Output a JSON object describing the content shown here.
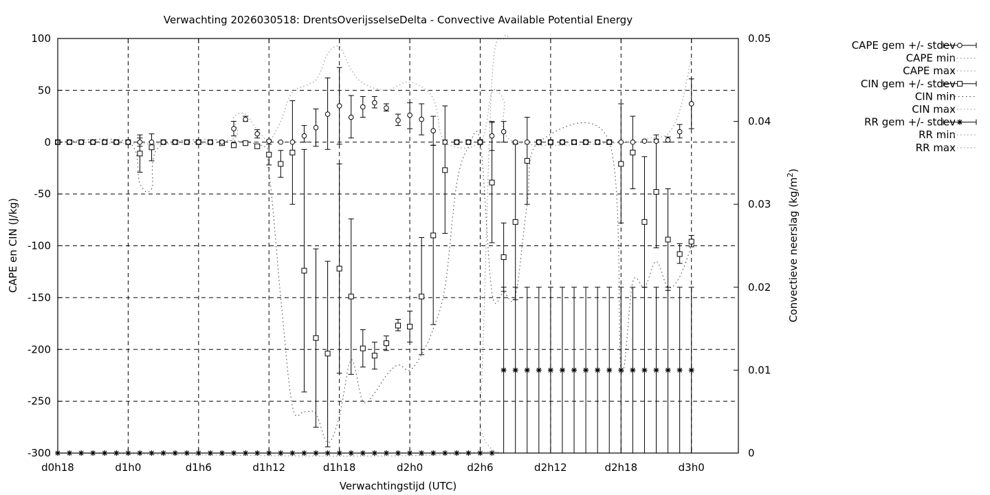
{
  "chart_data": {
    "type": "line",
    "title": "Verwachting 2026030518: DrentsOverijsselseDelta - Convective Available Potential Energy",
    "xlabel": "Verwachtingstijd (UTC)",
    "ylabel": "CAPE en CIN (J/kg)",
    "y2label": "Convectieve neerslag (kg/m",
    "y2label_sup": "2",
    "y2label_end": ")",
    "xlim": [
      18,
      76
    ],
    "ylim": [
      -300,
      100
    ],
    "y2lim": [
      0,
      0.05
    ],
    "grid": true,
    "legend_position": "outside-right",
    "x_ticks": [
      {
        "x": 18,
        "label": "d0h18"
      },
      {
        "x": 24,
        "label": "d1h0"
      },
      {
        "x": 30,
        "label": "d1h6"
      },
      {
        "x": 36,
        "label": "d1h12"
      },
      {
        "x": 42,
        "label": "d1h18"
      },
      {
        "x": 48,
        "label": "d2h0"
      },
      {
        "x": 54,
        "label": "d2h6"
      },
      {
        "x": 60,
        "label": "d2h12"
      },
      {
        "x": 66,
        "label": "d2h18"
      },
      {
        "x": 72,
        "label": "d3h0"
      }
    ],
    "y_ticks": [
      {
        "y": 100,
        "label": "100"
      },
      {
        "y": 50,
        "label": "50"
      },
      {
        "y": 0,
        "label": "0"
      },
      {
        "y": -50,
        "label": "-50"
      },
      {
        "y": -100,
        "label": "-100"
      },
      {
        "y": -150,
        "label": "-150"
      },
      {
        "y": -200,
        "label": "-200"
      },
      {
        "y": -250,
        "label": "-250"
      },
      {
        "y": -300,
        "label": "-300"
      }
    ],
    "y2_ticks": [
      {
        "y": 0.05,
        "label": "0.05"
      },
      {
        "y": 0.04,
        "label": "0.04"
      },
      {
        "y": 0.03,
        "label": "0.03"
      },
      {
        "y": 0.02,
        "label": "0.02"
      },
      {
        "y": 0.01,
        "label": "0.01"
      },
      {
        "y": 0,
        "label": "0"
      }
    ],
    "legend": [
      {
        "label": "CAPE gem +/- stdev",
        "marker": "circle",
        "style": "errorbar"
      },
      {
        "label": "CAPE min",
        "style": "dotted"
      },
      {
        "label": "CAPE max",
        "style": "dotted"
      },
      {
        "label": "CIN gem +/- stdev",
        "marker": "square",
        "style": "errorbar"
      },
      {
        "label": "CIN min",
        "style": "dotted-dark"
      },
      {
        "label": "CIN max",
        "style": "dotted"
      },
      {
        "label": "RR gem +/- stdev",
        "marker": "star",
        "style": "errorbar"
      },
      {
        "label": "RR min",
        "style": "dotted"
      },
      {
        "label": "RR max",
        "style": "dotted"
      }
    ],
    "cape_mean": [
      {
        "x": 18,
        "y": 0
      },
      {
        "x": 19,
        "y": 0
      },
      {
        "x": 20,
        "y": 0
      },
      {
        "x": 21,
        "y": 0
      },
      {
        "x": 22,
        "y": 0
      },
      {
        "x": 23,
        "y": 0
      },
      {
        "x": 24,
        "y": 0
      },
      {
        "x": 25,
        "y": 0,
        "lo": -4,
        "hi": 4
      },
      {
        "x": 26,
        "y": 0
      },
      {
        "x": 27,
        "y": 0
      },
      {
        "x": 28,
        "y": 0
      },
      {
        "x": 29,
        "y": 0
      },
      {
        "x": 30,
        "y": 0
      },
      {
        "x": 31,
        "y": 0
      },
      {
        "x": 32,
        "y": 0
      },
      {
        "x": 33,
        "y": 13,
        "lo": 6,
        "hi": 20
      },
      {
        "x": 34,
        "y": 22,
        "lo": 20,
        "hi": 25
      },
      {
        "x": 35,
        "y": 8,
        "lo": 4,
        "hi": 12
      },
      {
        "x": 36,
        "y": 1,
        "lo": 0,
        "hi": 2
      },
      {
        "x": 37,
        "y": 0
      },
      {
        "x": 38,
        "y": 0
      },
      {
        "x": 39,
        "y": 6,
        "lo": 0,
        "hi": 16
      },
      {
        "x": 40,
        "y": 14,
        "lo": -4,
        "hi": 32
      },
      {
        "x": 41,
        "y": 27,
        "lo": -7,
        "hi": 62
      },
      {
        "x": 42,
        "y": 35,
        "lo": -2,
        "hi": 72
      },
      {
        "x": 43,
        "y": 24,
        "lo": 4,
        "hi": 45
      },
      {
        "x": 44,
        "y": 34,
        "lo": 24,
        "hi": 44
      },
      {
        "x": 45,
        "y": 38,
        "lo": 33,
        "hi": 44
      },
      {
        "x": 46,
        "y": 33,
        "lo": 30,
        "hi": 37
      },
      {
        "x": 47,
        "y": 21,
        "lo": 16,
        "hi": 27
      },
      {
        "x": 48,
        "y": 26,
        "lo": 13,
        "hi": 38
      },
      {
        "x": 49,
        "y": 22,
        "lo": 7,
        "hi": 37
      },
      {
        "x": 50,
        "y": 11,
        "lo": -3,
        "hi": 25
      },
      {
        "x": 51,
        "y": 0,
        "lo": -2,
        "hi": 2
      },
      {
        "x": 52,
        "y": 0
      },
      {
        "x": 53,
        "y": 0
      },
      {
        "x": 54,
        "y": 0
      },
      {
        "x": 55,
        "y": 6,
        "lo": -8,
        "hi": 20
      },
      {
        "x": 56,
        "y": 10,
        "lo": 0,
        "hi": 20
      },
      {
        "x": 57,
        "y": 0,
        "lo": -1,
        "hi": 1
      },
      {
        "x": 58,
        "y": 0
      },
      {
        "x": 59,
        "y": 0
      },
      {
        "x": 60,
        "y": 0
      },
      {
        "x": 61,
        "y": 0
      },
      {
        "x": 62,
        "y": 0
      },
      {
        "x": 63,
        "y": 0
      },
      {
        "x": 64,
        "y": 0
      },
      {
        "x": 65,
        "y": 0
      },
      {
        "x": 66,
        "y": 0
      },
      {
        "x": 67,
        "y": 0
      },
      {
        "x": 68,
        "y": 1,
        "lo": 0,
        "hi": 2
      },
      {
        "x": 69,
        "y": 1,
        "lo": 0,
        "hi": 3
      },
      {
        "x": 70,
        "y": 2,
        "lo": 0,
        "hi": 5
      },
      {
        "x": 71,
        "y": 10,
        "lo": 4,
        "hi": 17
      },
      {
        "x": 72,
        "y": 37,
        "lo": 13,
        "hi": 61
      }
    ],
    "cin_mean": [
      {
        "x": 18,
        "y": 0
      },
      {
        "x": 19,
        "y": 0
      },
      {
        "x": 20,
        "y": 0
      },
      {
        "x": 21,
        "y": 0
      },
      {
        "x": 22,
        "y": 0
      },
      {
        "x": 23,
        "y": 0
      },
      {
        "x": 24,
        "y": 0
      },
      {
        "x": 25,
        "y": -11,
        "lo": -29,
        "hi": 7
      },
      {
        "x": 26,
        "y": -5,
        "lo": -18,
        "hi": 8
      },
      {
        "x": 27,
        "y": 0
      },
      {
        "x": 28,
        "y": 0
      },
      {
        "x": 29,
        "y": 0
      },
      {
        "x": 30,
        "y": 0
      },
      {
        "x": 31,
        "y": 0
      },
      {
        "x": 32,
        "y": -1,
        "lo": -3,
        "hi": 1
      },
      {
        "x": 33,
        "y": -3,
        "lo": -5,
        "hi": -1
      },
      {
        "x": 34,
        "y": -1,
        "lo": -2,
        "hi": 0
      },
      {
        "x": 35,
        "y": -4,
        "lo": -6,
        "hi": -2
      },
      {
        "x": 36,
        "y": -12,
        "lo": -22,
        "hi": -2
      },
      {
        "x": 37,
        "y": -21,
        "lo": -34,
        "hi": -8
      },
      {
        "x": 38,
        "y": -10,
        "lo": -60,
        "hi": 40
      },
      {
        "x": 39,
        "y": -124,
        "lo": -241,
        "hi": -7
      },
      {
        "x": 40,
        "y": -189,
        "lo": -275,
        "hi": -103
      },
      {
        "x": 41,
        "y": -204,
        "lo": -294,
        "hi": -115
      },
      {
        "x": 42,
        "y": -122,
        "lo": -223,
        "hi": -21
      },
      {
        "x": 43,
        "y": -149,
        "lo": -224,
        "hi": -74
      },
      {
        "x": 44,
        "y": -199,
        "lo": -217,
        "hi": -181
      },
      {
        "x": 45,
        "y": -206,
        "lo": -219,
        "hi": -193
      },
      {
        "x": 46,
        "y": -194,
        "lo": -201,
        "hi": -187
      },
      {
        "x": 47,
        "y": -177,
        "lo": -182,
        "hi": -171
      },
      {
        "x": 48,
        "y": -178,
        "lo": -193,
        "hi": -163
      },
      {
        "x": 49,
        "y": -149,
        "lo": -205,
        "hi": -92
      },
      {
        "x": 50,
        "y": -90,
        "lo": -176,
        "hi": -3
      },
      {
        "x": 51,
        "y": -27,
        "lo": -88,
        "hi": 35
      },
      {
        "x": 52,
        "y": 0
      },
      {
        "x": 53,
        "y": 0
      },
      {
        "x": 54,
        "y": 0
      },
      {
        "x": 55,
        "y": -39,
        "lo": -97,
        "hi": 19
      },
      {
        "x": 56,
        "y": -111,
        "lo": -144,
        "hi": -78
      },
      {
        "x": 57,
        "y": -77,
        "lo": -152,
        "hi": -2
      },
      {
        "x": 58,
        "y": -18,
        "lo": -60,
        "hi": 24
      },
      {
        "x": 59,
        "y": 0
      },
      {
        "x": 60,
        "y": 0
      },
      {
        "x": 61,
        "y": 0
      },
      {
        "x": 62,
        "y": 0
      },
      {
        "x": 63,
        "y": 0
      },
      {
        "x": 64,
        "y": 0
      },
      {
        "x": 65,
        "y": 0
      },
      {
        "x": 66,
        "y": -21,
        "lo": -78,
        "hi": 37
      },
      {
        "x": 67,
        "y": -10,
        "lo": -45,
        "hi": 25
      },
      {
        "x": 68,
        "y": -77,
        "lo": -140,
        "hi": -14
      },
      {
        "x": 69,
        "y": -48,
        "lo": -102,
        "hi": 7
      },
      {
        "x": 70,
        "y": -94,
        "lo": -143,
        "hi": -45
      },
      {
        "x": 71,
        "y": -108,
        "lo": -117,
        "hi": -98
      },
      {
        "x": 72,
        "y": -96,
        "lo": -101,
        "hi": -90
      }
    ],
    "rr_mean": [
      {
        "x": 18,
        "y": 0
      },
      {
        "x": 19,
        "y": 0
      },
      {
        "x": 20,
        "y": 0
      },
      {
        "x": 21,
        "y": 0
      },
      {
        "x": 22,
        "y": 0
      },
      {
        "x": 23,
        "y": 0
      },
      {
        "x": 24,
        "y": 0
      },
      {
        "x": 25,
        "y": 0
      },
      {
        "x": 26,
        "y": 0
      },
      {
        "x": 27,
        "y": 0
      },
      {
        "x": 28,
        "y": 0
      },
      {
        "x": 29,
        "y": 0
      },
      {
        "x": 30,
        "y": 0
      },
      {
        "x": 31,
        "y": 0
      },
      {
        "x": 32,
        "y": 0
      },
      {
        "x": 33,
        "y": 0
      },
      {
        "x": 34,
        "y": 0
      },
      {
        "x": 35,
        "y": 0
      },
      {
        "x": 36,
        "y": 0
      },
      {
        "x": 37,
        "y": 0
      },
      {
        "x": 38,
        "y": 0
      },
      {
        "x": 39,
        "y": 0
      },
      {
        "x": 40,
        "y": 0
      },
      {
        "x": 41,
        "y": 0
      },
      {
        "x": 42,
        "y": 0
      },
      {
        "x": 43,
        "y": 0
      },
      {
        "x": 44,
        "y": 0
      },
      {
        "x": 45,
        "y": 0
      },
      {
        "x": 46,
        "y": 0
      },
      {
        "x": 47,
        "y": 0
      },
      {
        "x": 48,
        "y": 0
      },
      {
        "x": 49,
        "y": 0
      },
      {
        "x": 50,
        "y": 0
      },
      {
        "x": 51,
        "y": 0
      },
      {
        "x": 52,
        "y": 0
      },
      {
        "x": 53,
        "y": 0
      },
      {
        "x": 54,
        "y": 0
      },
      {
        "x": 55,
        "y": 0
      },
      {
        "x": 56,
        "y": 0.01,
        "lo": 0,
        "hi": 0.02
      },
      {
        "x": 57,
        "y": 0.01,
        "lo": 0,
        "hi": 0.02
      },
      {
        "x": 58,
        "y": 0.01,
        "lo": 0,
        "hi": 0.02
      },
      {
        "x": 59,
        "y": 0.01,
        "lo": 0,
        "hi": 0.02
      },
      {
        "x": 60,
        "y": 0.01,
        "lo": 0,
        "hi": 0.02
      },
      {
        "x": 61,
        "y": 0.01,
        "lo": 0,
        "hi": 0.02
      },
      {
        "x": 62,
        "y": 0.01,
        "lo": 0,
        "hi": 0.02
      },
      {
        "x": 63,
        "y": 0.01,
        "lo": 0,
        "hi": 0.02
      },
      {
        "x": 64,
        "y": 0.01,
        "lo": 0,
        "hi": 0.02
      },
      {
        "x": 65,
        "y": 0.01,
        "lo": 0,
        "hi": 0.02
      },
      {
        "x": 66,
        "y": 0.01,
        "lo": 0,
        "hi": 0.02
      },
      {
        "x": 67,
        "y": 0.01,
        "lo": 0,
        "hi": 0.02
      },
      {
        "x": 68,
        "y": 0.01,
        "lo": 0,
        "hi": 0.02
      },
      {
        "x": 69,
        "y": 0.01,
        "lo": 0,
        "hi": 0.02
      },
      {
        "x": 70,
        "y": 0.01,
        "lo": 0,
        "hi": 0.02
      },
      {
        "x": 71,
        "y": 0.01,
        "lo": 0,
        "hi": 0.02
      },
      {
        "x": 72,
        "y": 0.01,
        "lo": 0,
        "hi": 0.02
      }
    ],
    "envelopes": [
      {
        "name": "CAPE max",
        "axis": "y",
        "points": [
          [
            18,
            0
          ],
          [
            32,
            0
          ],
          [
            33,
            24
          ],
          [
            34,
            27
          ],
          [
            35,
            12
          ],
          [
            36,
            2
          ],
          [
            37,
            20
          ],
          [
            38,
            48
          ],
          [
            40,
            60
          ],
          [
            41,
            85
          ],
          [
            42,
            92
          ],
          [
            43,
            70
          ],
          [
            44,
            57
          ],
          [
            46,
            50
          ],
          [
            48,
            58
          ],
          [
            50,
            42
          ],
          [
            51,
            0
          ],
          [
            54,
            0
          ],
          [
            55,
            48
          ],
          [
            56,
            40
          ],
          [
            57,
            0
          ],
          [
            67,
            0
          ],
          [
            68,
            3
          ],
          [
            69,
            5
          ],
          [
            70,
            8
          ],
          [
            71,
            30
          ],
          [
            72,
            82
          ]
        ]
      },
      {
        "name": "CIN min",
        "axis": "y",
        "points": [
          [
            18,
            0
          ],
          [
            24,
            0
          ],
          [
            25,
            -40
          ],
          [
            26,
            -45
          ],
          [
            27,
            -2
          ],
          [
            35,
            -2
          ],
          [
            36,
            -30
          ],
          [
            37,
            -150
          ],
          [
            38,
            -255
          ],
          [
            39,
            -260
          ],
          [
            40,
            -262
          ],
          [
            41,
            -290
          ],
          [
            42,
            -265
          ],
          [
            43,
            -210
          ],
          [
            44,
            -250
          ],
          [
            45,
            -242
          ],
          [
            46,
            -225
          ],
          [
            47,
            -215
          ],
          [
            48,
            -220
          ],
          [
            49,
            -205
          ],
          [
            50,
            -180
          ],
          [
            51,
            -140
          ],
          [
            52,
            -40
          ],
          [
            53,
            -5
          ],
          [
            54,
            0
          ],
          [
            55,
            -145
          ],
          [
            56,
            -145
          ],
          [
            57,
            -148
          ],
          [
            58,
            -60
          ],
          [
            59,
            0
          ],
          [
            65,
            0
          ],
          [
            66,
            -220
          ],
          [
            67,
            -135
          ],
          [
            68,
            -140
          ],
          [
            69,
            -115
          ],
          [
            70,
            -140
          ],
          [
            71,
            -130
          ],
          [
            72,
            -100
          ]
        ]
      },
      {
        "name": "RR max",
        "axis": "y2",
        "points": [
          [
            18,
            0
          ],
          [
            53,
            0
          ],
          [
            54,
            0.005
          ],
          [
            55,
            0.045
          ],
          [
            56,
            0.05
          ],
          [
            56.4,
            0.052
          ]
        ]
      }
    ]
  },
  "legend_colors": {
    "envelope": "#909090",
    "marker": "#000000"
  }
}
